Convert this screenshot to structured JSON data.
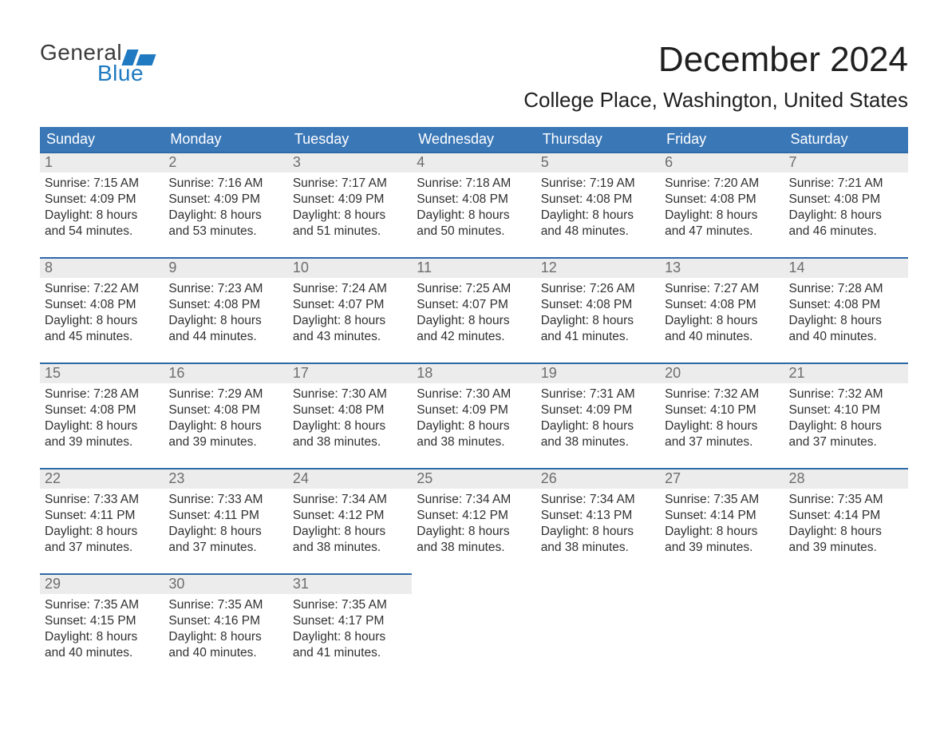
{
  "logo": {
    "line1": "General",
    "line2": "Blue"
  },
  "title": "December 2024",
  "location": "College Place, Washington, United States",
  "colors": {
    "header_bg": "#3a77b7",
    "row_accent": "#2f6aa8",
    "date_bg": "#ececec",
    "date_text": "#6d6d6d",
    "body_text": "#303030",
    "logo_blue": "#1f7ac1",
    "page_bg": "#ffffff"
  },
  "fonts": {
    "title_pt": 44,
    "location_pt": 26,
    "dayheader_pt": 18,
    "body_pt": 15.5
  },
  "day_headers": [
    "Sunday",
    "Monday",
    "Tuesday",
    "Wednesday",
    "Thursday",
    "Friday",
    "Saturday"
  ],
  "layout": {
    "columns": 7,
    "rows": 5,
    "first_weekday_index": 0,
    "days_in_month": 31
  },
  "days": [
    {
      "n": "1",
      "sunrise": "Sunrise: 7:15 AM",
      "sunset": "Sunset: 4:09 PM",
      "d1": "Daylight: 8 hours",
      "d2": "and 54 minutes."
    },
    {
      "n": "2",
      "sunrise": "Sunrise: 7:16 AM",
      "sunset": "Sunset: 4:09 PM",
      "d1": "Daylight: 8 hours",
      "d2": "and 53 minutes."
    },
    {
      "n": "3",
      "sunrise": "Sunrise: 7:17 AM",
      "sunset": "Sunset: 4:09 PM",
      "d1": "Daylight: 8 hours",
      "d2": "and 51 minutes."
    },
    {
      "n": "4",
      "sunrise": "Sunrise: 7:18 AM",
      "sunset": "Sunset: 4:08 PM",
      "d1": "Daylight: 8 hours",
      "d2": "and 50 minutes."
    },
    {
      "n": "5",
      "sunrise": "Sunrise: 7:19 AM",
      "sunset": "Sunset: 4:08 PM",
      "d1": "Daylight: 8 hours",
      "d2": "and 48 minutes."
    },
    {
      "n": "6",
      "sunrise": "Sunrise: 7:20 AM",
      "sunset": "Sunset: 4:08 PM",
      "d1": "Daylight: 8 hours",
      "d2": "and 47 minutes."
    },
    {
      "n": "7",
      "sunrise": "Sunrise: 7:21 AM",
      "sunset": "Sunset: 4:08 PM",
      "d1": "Daylight: 8 hours",
      "d2": "and 46 minutes."
    },
    {
      "n": "8",
      "sunrise": "Sunrise: 7:22 AM",
      "sunset": "Sunset: 4:08 PM",
      "d1": "Daylight: 8 hours",
      "d2": "and 45 minutes."
    },
    {
      "n": "9",
      "sunrise": "Sunrise: 7:23 AM",
      "sunset": "Sunset: 4:08 PM",
      "d1": "Daylight: 8 hours",
      "d2": "and 44 minutes."
    },
    {
      "n": "10",
      "sunrise": "Sunrise: 7:24 AM",
      "sunset": "Sunset: 4:07 PM",
      "d1": "Daylight: 8 hours",
      "d2": "and 43 minutes."
    },
    {
      "n": "11",
      "sunrise": "Sunrise: 7:25 AM",
      "sunset": "Sunset: 4:07 PM",
      "d1": "Daylight: 8 hours",
      "d2": "and 42 minutes."
    },
    {
      "n": "12",
      "sunrise": "Sunrise: 7:26 AM",
      "sunset": "Sunset: 4:08 PM",
      "d1": "Daylight: 8 hours",
      "d2": "and 41 minutes."
    },
    {
      "n": "13",
      "sunrise": "Sunrise: 7:27 AM",
      "sunset": "Sunset: 4:08 PM",
      "d1": "Daylight: 8 hours",
      "d2": "and 40 minutes."
    },
    {
      "n": "14",
      "sunrise": "Sunrise: 7:28 AM",
      "sunset": "Sunset: 4:08 PM",
      "d1": "Daylight: 8 hours",
      "d2": "and 40 minutes."
    },
    {
      "n": "15",
      "sunrise": "Sunrise: 7:28 AM",
      "sunset": "Sunset: 4:08 PM",
      "d1": "Daylight: 8 hours",
      "d2": "and 39 minutes."
    },
    {
      "n": "16",
      "sunrise": "Sunrise: 7:29 AM",
      "sunset": "Sunset: 4:08 PM",
      "d1": "Daylight: 8 hours",
      "d2": "and 39 minutes."
    },
    {
      "n": "17",
      "sunrise": "Sunrise: 7:30 AM",
      "sunset": "Sunset: 4:08 PM",
      "d1": "Daylight: 8 hours",
      "d2": "and 38 minutes."
    },
    {
      "n": "18",
      "sunrise": "Sunrise: 7:30 AM",
      "sunset": "Sunset: 4:09 PM",
      "d1": "Daylight: 8 hours",
      "d2": "and 38 minutes."
    },
    {
      "n": "19",
      "sunrise": "Sunrise: 7:31 AM",
      "sunset": "Sunset: 4:09 PM",
      "d1": "Daylight: 8 hours",
      "d2": "and 38 minutes."
    },
    {
      "n": "20",
      "sunrise": "Sunrise: 7:32 AM",
      "sunset": "Sunset: 4:10 PM",
      "d1": "Daylight: 8 hours",
      "d2": "and 37 minutes."
    },
    {
      "n": "21",
      "sunrise": "Sunrise: 7:32 AM",
      "sunset": "Sunset: 4:10 PM",
      "d1": "Daylight: 8 hours",
      "d2": "and 37 minutes."
    },
    {
      "n": "22",
      "sunrise": "Sunrise: 7:33 AM",
      "sunset": "Sunset: 4:11 PM",
      "d1": "Daylight: 8 hours",
      "d2": "and 37 minutes."
    },
    {
      "n": "23",
      "sunrise": "Sunrise: 7:33 AM",
      "sunset": "Sunset: 4:11 PM",
      "d1": "Daylight: 8 hours",
      "d2": "and 37 minutes."
    },
    {
      "n": "24",
      "sunrise": "Sunrise: 7:34 AM",
      "sunset": "Sunset: 4:12 PM",
      "d1": "Daylight: 8 hours",
      "d2": "and 38 minutes."
    },
    {
      "n": "25",
      "sunrise": "Sunrise: 7:34 AM",
      "sunset": "Sunset: 4:12 PM",
      "d1": "Daylight: 8 hours",
      "d2": "and 38 minutes."
    },
    {
      "n": "26",
      "sunrise": "Sunrise: 7:34 AM",
      "sunset": "Sunset: 4:13 PM",
      "d1": "Daylight: 8 hours",
      "d2": "and 38 minutes."
    },
    {
      "n": "27",
      "sunrise": "Sunrise: 7:35 AM",
      "sunset": "Sunset: 4:14 PM",
      "d1": "Daylight: 8 hours",
      "d2": "and 39 minutes."
    },
    {
      "n": "28",
      "sunrise": "Sunrise: 7:35 AM",
      "sunset": "Sunset: 4:14 PM",
      "d1": "Daylight: 8 hours",
      "d2": "and 39 minutes."
    },
    {
      "n": "29",
      "sunrise": "Sunrise: 7:35 AM",
      "sunset": "Sunset: 4:15 PM",
      "d1": "Daylight: 8 hours",
      "d2": "and 40 minutes."
    },
    {
      "n": "30",
      "sunrise": "Sunrise: 7:35 AM",
      "sunset": "Sunset: 4:16 PM",
      "d1": "Daylight: 8 hours",
      "d2": "and 40 minutes."
    },
    {
      "n": "31",
      "sunrise": "Sunrise: 7:35 AM",
      "sunset": "Sunset: 4:17 PM",
      "d1": "Daylight: 8 hours",
      "d2": "and 41 minutes."
    }
  ]
}
